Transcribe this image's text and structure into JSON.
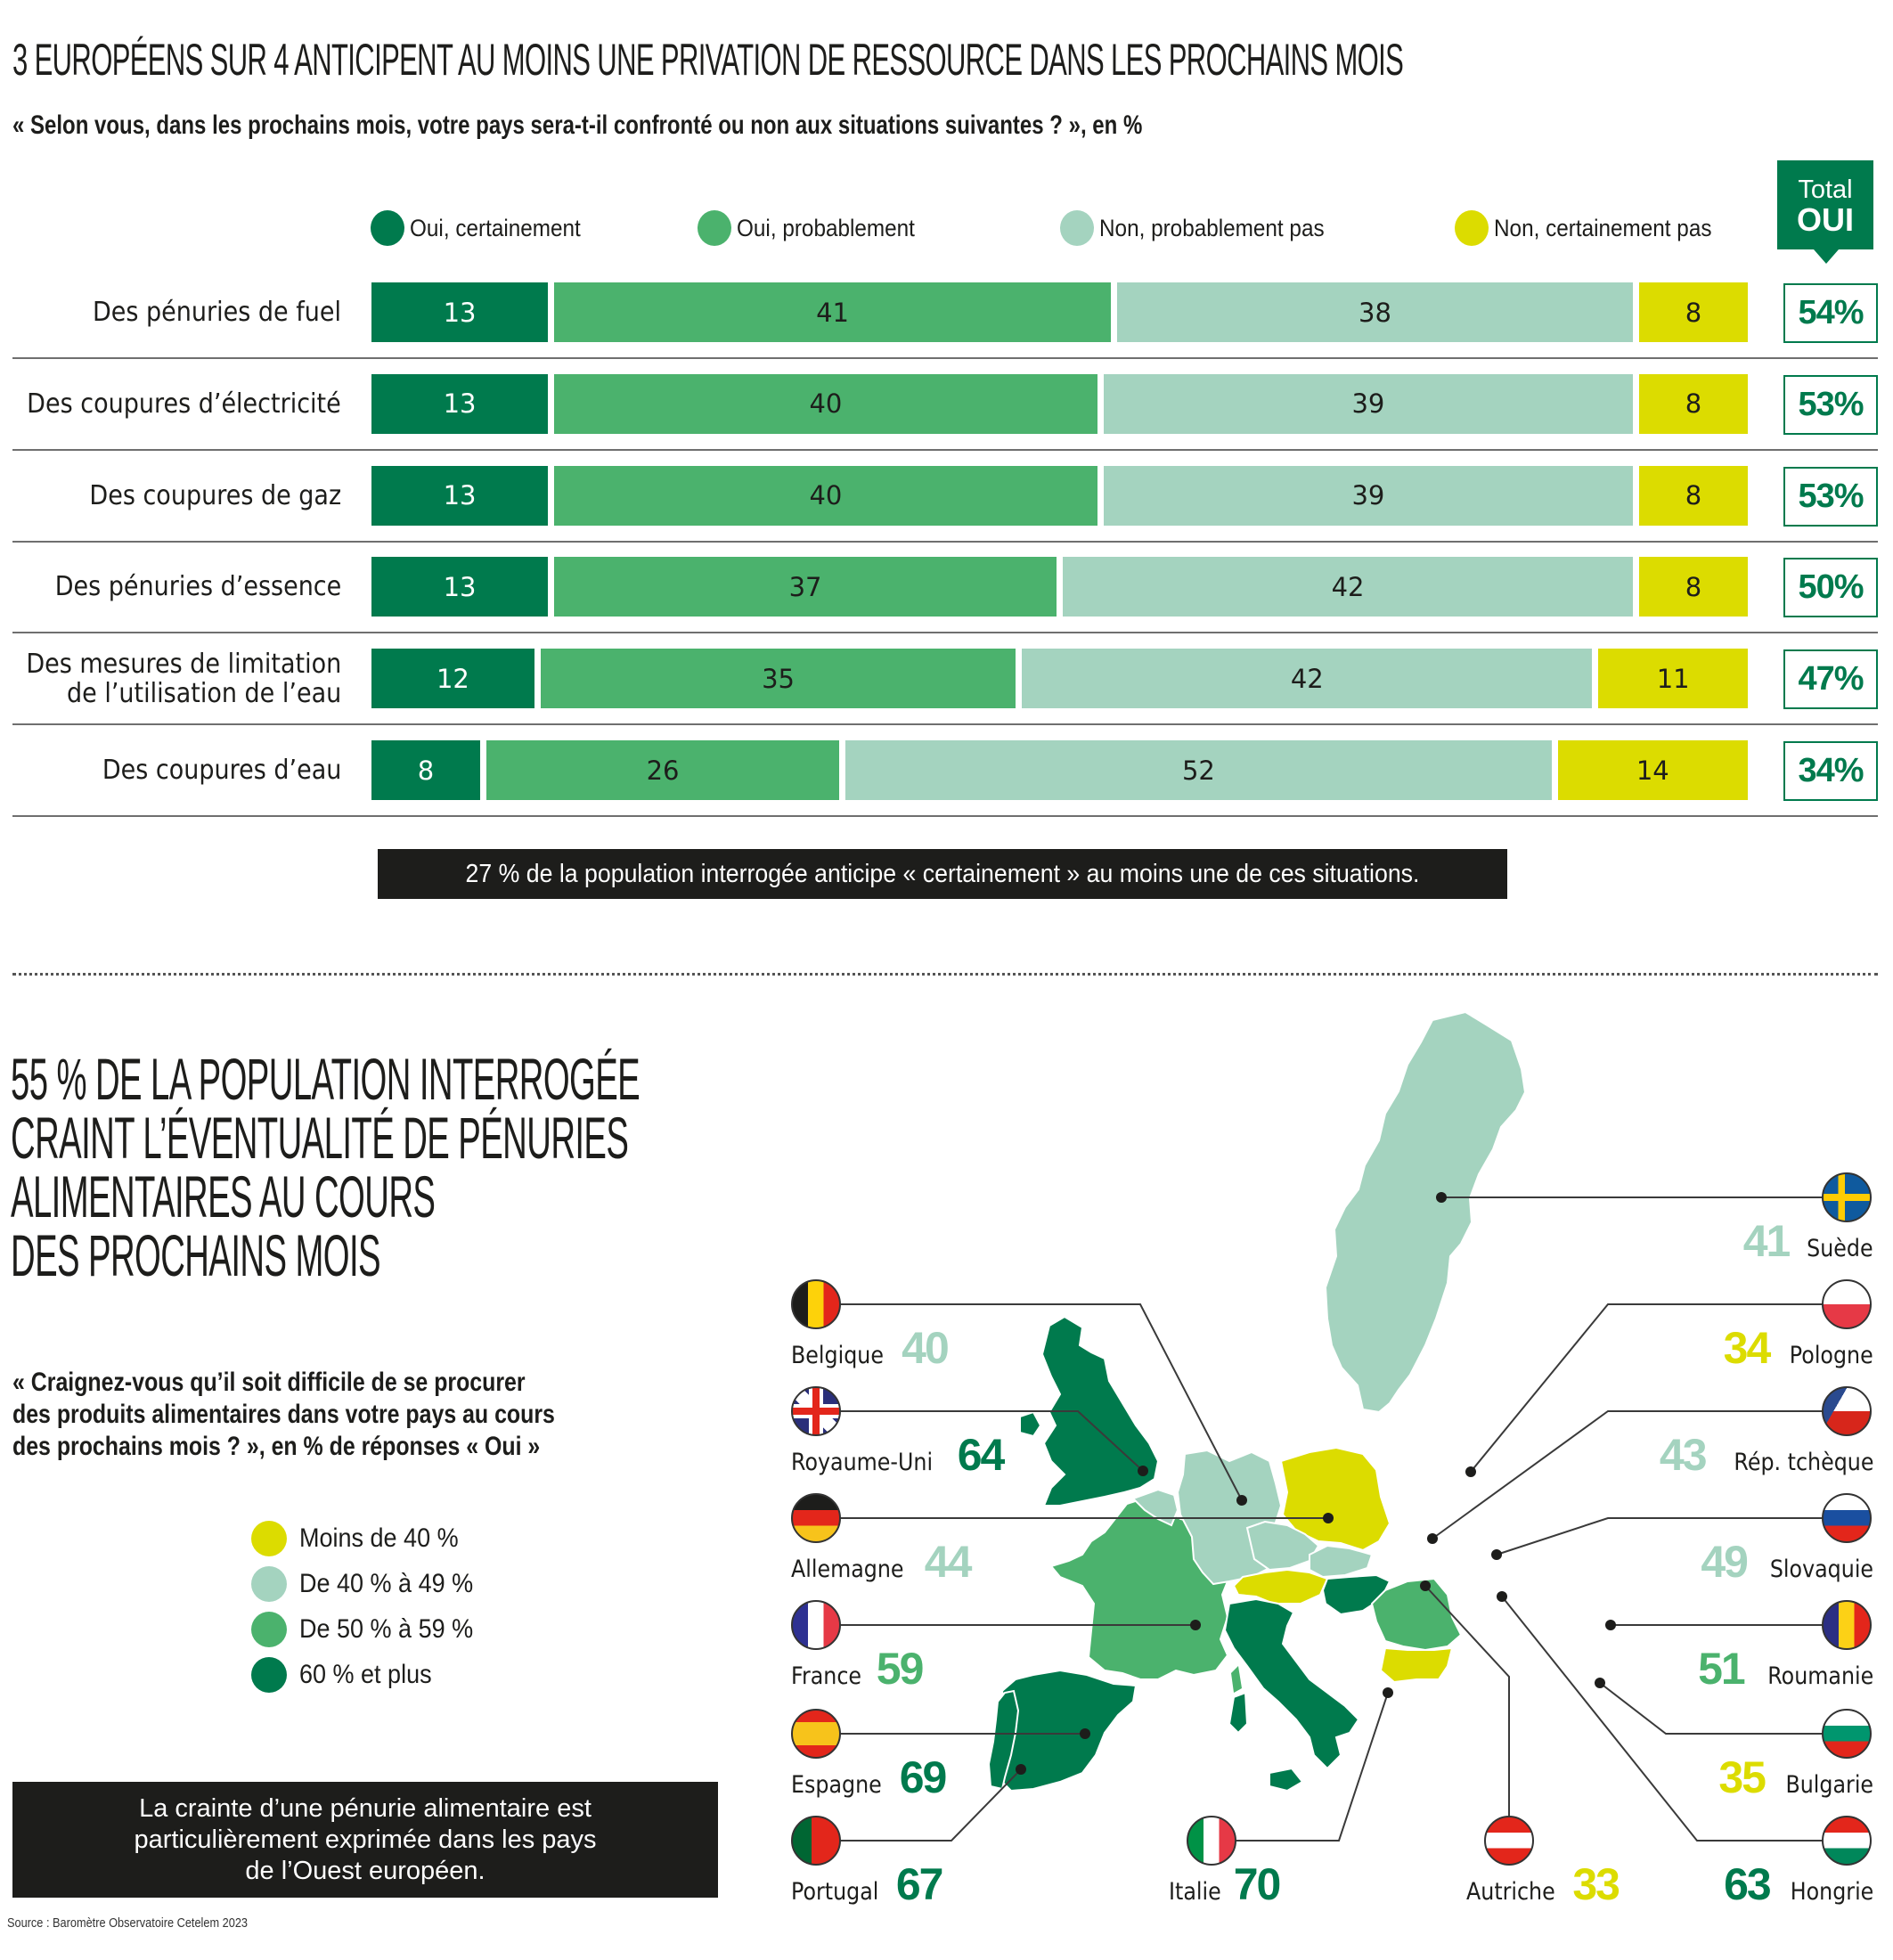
{
  "colors": {
    "oui_certainement": "#007a4d",
    "oui_probablement": "#4bb26d",
    "non_probablement_pas": "#a4d3bf",
    "non_certainement_pas": "#dcdc00",
    "dark": "#1d1d1b"
  },
  "section1": {
    "title": "3 EUROPÉENS SUR 4 ANTICIPENT AU MOINS UNE PRIVATION DE RESSOURCE DANS LES PROCHAINS MOIS",
    "question": "« Selon vous, dans les prochains mois, votre pays sera-t-il confronté ou non aux situations suivantes ? », en %",
    "total_header": {
      "line1": "Total",
      "line2": "OUI"
    },
    "callout": "27 % de la population interrogée anticipe « certainement » au moins une de ces situations."
  },
  "chart_data": [
    {
      "type": "bar",
      "orientation": "horizontal",
      "stacked": true,
      "title": "3 EUROPÉENS SUR 4 ANTICIPENT AU MOINS UNE PRIVATION DE RESSOURCE DANS LES PROCHAINS MOIS",
      "subtitle": "« Selon vous, dans les prochains mois, votre pays sera-t-il confronté ou non aux situations suivantes ? », en %",
      "categories": [
        "Des pénuries de fuel",
        "Des coupures d’électricité",
        "Des coupures de gaz",
        "Des pénuries d’essence",
        "Des mesures de limitation de l’utilisation de l’eau",
        "Des coupures d’eau"
      ],
      "category_lines": [
        [
          "Des pénuries de fuel"
        ],
        [
          "Des coupures d’électricité"
        ],
        [
          "Des coupures de gaz"
        ],
        [
          "Des pénuries d’essence"
        ],
        [
          "Des mesures de limitation",
          "de l’utilisation de l’eau"
        ],
        [
          "Des coupures d’eau"
        ]
      ],
      "series": [
        {
          "name": "Oui, certainement",
          "color": "#007a4d",
          "text_color": "#ffffff",
          "values": [
            13,
            13,
            13,
            13,
            12,
            8
          ]
        },
        {
          "name": "Oui, probablement",
          "color": "#4bb26d",
          "text_color": "#1d1d1b",
          "values": [
            41,
            40,
            40,
            37,
            35,
            26
          ]
        },
        {
          "name": "Non, probablement pas",
          "color": "#a4d3bf",
          "text_color": "#1d1d1b",
          "values": [
            38,
            39,
            39,
            42,
            42,
            52
          ]
        },
        {
          "name": "Non, certainement pas",
          "color": "#dcdc00",
          "text_color": "#1d1d1b",
          "values": [
            8,
            8,
            8,
            8,
            11,
            14
          ]
        }
      ],
      "totals_label": "Total OUI",
      "totals": [
        "54%",
        "53%",
        "53%",
        "50%",
        "47%",
        "34%"
      ],
      "xlim": [
        0,
        100
      ],
      "legend": "top"
    },
    {
      "type": "choropleth",
      "title": "55 % DE LA POPULATION INTERROGÉE CRAINT L’ÉVENTUALITÉ DE PÉNURIES ALIMENTAIRES AU COURS DES PROCHAINS MOIS",
      "subtitle": "« Craignez-vous qu’il soit difficile de se procurer des produits alimentaires dans votre pays au cours des prochains mois ? », en % de réponses « Oui »",
      "legend": [
        {
          "label": "Moins de 40 %",
          "color": "#dcdc00"
        },
        {
          "label": "De 40 % à 49 %",
          "color": "#a4d3bf"
        },
        {
          "label": "De 50 % à 59 %",
          "color": "#4bb26d"
        },
        {
          "label": "60 % et plus",
          "color": "#007a4d"
        }
      ],
      "countries": [
        {
          "name": "Belgique",
          "value": 40
        },
        {
          "name": "Royaume-Uni",
          "value": 64
        },
        {
          "name": "Allemagne",
          "value": 44
        },
        {
          "name": "France",
          "value": 59
        },
        {
          "name": "Espagne",
          "value": 69
        },
        {
          "name": "Portugal",
          "value": 67
        },
        {
          "name": "Italie",
          "value": 70
        },
        {
          "name": "Autriche",
          "value": 33
        },
        {
          "name": "Suède",
          "value": 41
        },
        {
          "name": "Pologne",
          "value": 34
        },
        {
          "name": "Rép. tchèque",
          "value": 43
        },
        {
          "name": "Slovaquie",
          "value": 49
        },
        {
          "name": "Roumanie",
          "value": 51
        },
        {
          "name": "Bulgarie",
          "value": 35
        },
        {
          "name": "Hongrie",
          "value": 63
        }
      ]
    }
  ],
  "section2": {
    "title_lines": [
      "55 % DE LA POPULATION INTERROGÉE",
      "CRAINT L’ÉVENTUALITÉ DE PÉNURIES",
      "ALIMENTAIRES AU COURS",
      "DES PROCHAINS MOIS"
    ],
    "question_lines": [
      "« Craignez-vous qu’il soit difficile de se procurer",
      "des produits alimentaires dans votre pays au cours",
      "des prochains mois ? », en % de réponses « Oui »"
    ],
    "legend": [
      {
        "label": "Moins de 40 %",
        "color": "#dcdc00"
      },
      {
        "label": "De 40 % à 49 %",
        "color": "#a4d3bf"
      },
      {
        "label": "De 50 % à 59 %",
        "color": "#4bb26d"
      },
      {
        "label": "60 % et plus",
        "color": "#007a4d"
      }
    ],
    "callout_lines": [
      "La crainte d’une pénurie alimentaire est",
      "particulièrement exprimée dans les pays",
      "de l’Ouest européen."
    ],
    "source": "Source : Baromètre Observatoire Cetelem 2023"
  }
}
